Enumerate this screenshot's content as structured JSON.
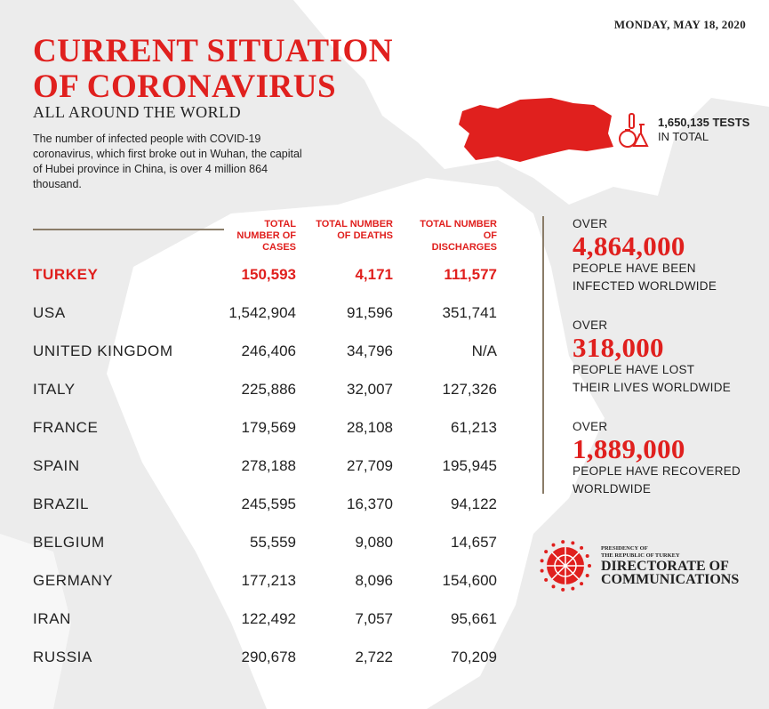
{
  "date": "MONDAY, MAY 18, 2020",
  "title_line1": "CURRENT SITUATION",
  "title_line2": "OF CORONAVIRUS",
  "subtitle": "ALL AROUND THE WORLD",
  "intro": "The number of infected people with COVID-19 coronavirus, which first broke out in Wuhan, the capital of Hubei province in China, is over 4 million 864 thousand.",
  "tests": {
    "value": "1,650,135 TESTS",
    "label": "IN TOTAL",
    "icon": "flask-icon"
  },
  "accent_color": "#e0201e",
  "table": {
    "headers": [
      "TOTAL NUMBER OF CASES",
      "TOTAL NUMBER OF DEATHS",
      "TOTAL NUMBER OF DISCHARGES"
    ],
    "rows": [
      {
        "country": "TURKEY",
        "cases": "150,593",
        "deaths": "4,171",
        "discharges": "111,577"
      },
      {
        "country": "USA",
        "cases": "1,542,904",
        "deaths": "91,596",
        "discharges": "351,741"
      },
      {
        "country": "UNITED KINGDOM",
        "cases": "246,406",
        "deaths": "34,796",
        "discharges": "N/A"
      },
      {
        "country": "ITALY",
        "cases": "225,886",
        "deaths": "32,007",
        "discharges": "127,326"
      },
      {
        "country": "FRANCE",
        "cases": "179,569",
        "deaths": "28,108",
        "discharges": "61,213"
      },
      {
        "country": "SPAIN",
        "cases": "278,188",
        "deaths": "27,709",
        "discharges": "195,945"
      },
      {
        "country": "BRAZIL",
        "cases": "245,595",
        "deaths": "16,370",
        "discharges": "94,122"
      },
      {
        "country": "BELGIUM",
        "cases": "55,559",
        "deaths": "9,080",
        "discharges": "14,657"
      },
      {
        "country": "GERMANY",
        "cases": "177,213",
        "deaths": "8,096",
        "discharges": "154,600"
      },
      {
        "country": "IRAN",
        "cases": "122,492",
        "deaths": "7,057",
        "discharges": "95,661"
      },
      {
        "country": "RUSSIA",
        "cases": "290,678",
        "deaths": "2,722",
        "discharges": "70,209"
      }
    ]
  },
  "stats": [
    {
      "prefix": "OVER",
      "value": "4,864,000",
      "line1": "PEOPLE HAVE BEEN",
      "line2": "INFECTED WORLDWIDE"
    },
    {
      "prefix": "OVER",
      "value": "318,000",
      "line1": "PEOPLE HAVE LOST",
      "line2": "THEIR LIVES WORLDWIDE"
    },
    {
      "prefix": "OVER",
      "value": "1,889,000",
      "line1": "PEOPLE HAVE RECOVERED",
      "line2": "WORLDWIDE"
    }
  ],
  "logo": {
    "small1": "PRESIDENCY OF",
    "small2": "THE REPUBLIC OF TURKEY",
    "big1": "DIRECTORATE OF",
    "big2": "COMMUNICATIONS"
  }
}
